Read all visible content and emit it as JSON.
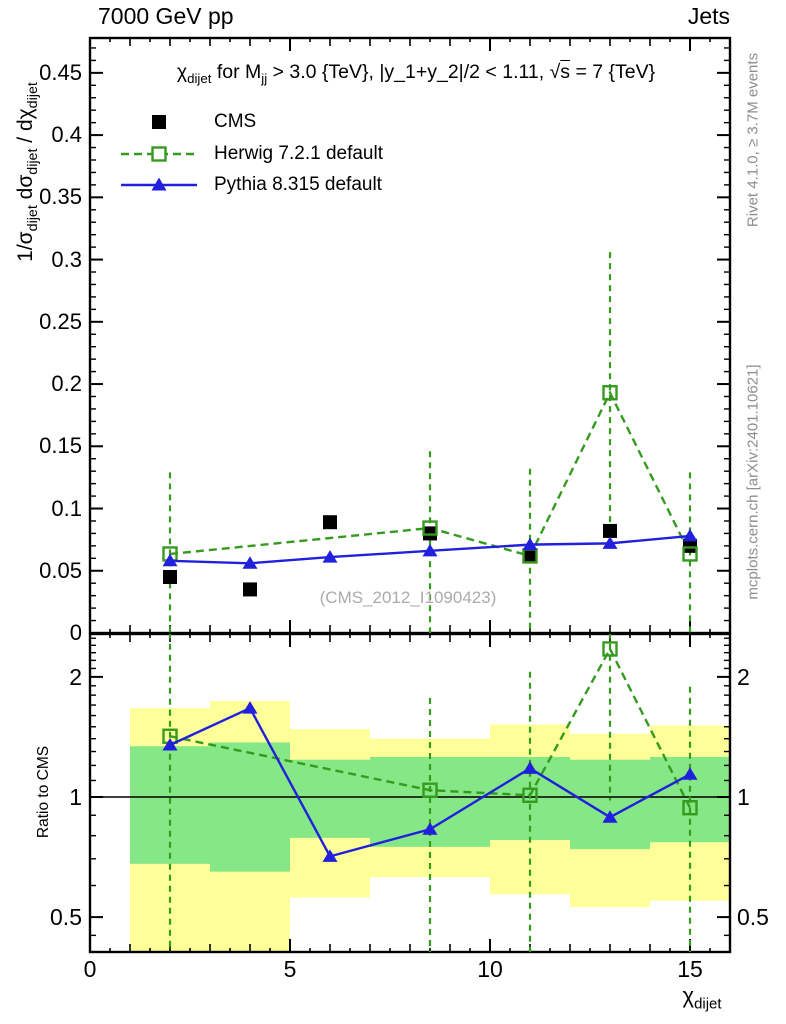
{
  "header": {
    "left": "7000 GeV pp",
    "right": "Jets"
  },
  "title_rich": [
    {
      "t": "χ"
    },
    {
      "t": "dijet",
      "sub": true
    },
    {
      "t": " for M"
    },
    {
      "t": "jj",
      "sub": true
    },
    {
      "t": " > 3.0 {TeV}, |y_1+y_2|/2 < 1.11, "
    },
    {
      "t": "√"
    },
    {
      "t": "s",
      "ov": true
    },
    {
      "t": " = 7 {TeV}"
    }
  ],
  "watermark": "(CMS_2012_I1090423)",
  "notes": {
    "right_top": "Rivet 4.1.0, ≥ 3.7M events",
    "right_bottom": "mcplots.cern.ch [arXiv:2401.10621]"
  },
  "legend": [
    {
      "label": "CMS",
      "marker": "square-filled",
      "line": "none",
      "color": "#000000"
    },
    {
      "label": "Herwig 7.2.1 default",
      "marker": "square-open",
      "line": "dashed",
      "color": "#359b1e"
    },
    {
      "label": "Pythia 8.315 default",
      "marker": "triangle-filled",
      "line": "solid",
      "color": "#2121dd"
    }
  ],
  "axes": {
    "main_ylabel_rich": [
      {
        "t": "1/σ"
      },
      {
        "t": "dijet",
        "sub": true
      },
      {
        "t": "  dσ"
      },
      {
        "t": "dijet",
        "sub": true
      },
      {
        "t": " / dχ"
      },
      {
        "t": "dijet",
        "sub": true
      }
    ],
    "ratio_ylabel": "Ratio to CMS",
    "xlabel_rich": [
      {
        "t": "χ"
      },
      {
        "t": "dijet",
        "sub": true
      }
    ],
    "main_y": {
      "values": [
        0,
        0.05,
        0.1,
        0.15,
        0.2,
        0.25,
        0.3,
        0.35,
        0.4,
        0.45
      ],
      "labels": [
        "0",
        "0.05",
        "0.1",
        "0.15",
        "0.2",
        "0.25",
        "0.3",
        "0.35",
        "0.4",
        "0.45"
      ]
    },
    "ratio_y": {
      "values": [
        0.5,
        1,
        2
      ],
      "labels": [
        "0.5",
        "1",
        "2"
      ]
    },
    "x": {
      "values": [
        0,
        5,
        10,
        15
      ],
      "labels": [
        "0",
        "5",
        "10",
        "15"
      ]
    }
  },
  "colors": {
    "herwig_green": "#359b1e",
    "pythia_blue": "#2121dd",
    "band_yellow": "#ffff99",
    "band_green": "#86e786",
    "frame": "#000000",
    "note_gray": "#8e8e8e",
    "watermark_gray": "#ababab"
  },
  "chart_data": [
    {
      "type": "line",
      "panel": "main",
      "title": "chi_dijet for M_jj > 3.0 TeV, |y_1+y_2|/2 < 1.11, sqrt(s) = 7 TeV",
      "ylabel": "1/sigma_dijet dsigma_dijet / dchi_dijet",
      "xlim": [
        0,
        16
      ],
      "ylim": [
        0,
        0.478
      ],
      "grid": false,
      "legend_position": "top-left",
      "series": [
        {
          "name": "CMS",
          "marker": "square-filled",
          "line": "none",
          "color": "#000000",
          "x": [
            2,
            4,
            6,
            8.5,
            11,
            13,
            15
          ],
          "y": [
            0.045,
            0.035,
            0.089,
            0.08,
            0.062,
            0.082,
            0.07
          ]
        },
        {
          "name": "Herwig 7.2.1 default",
          "marker": "square-open",
          "line": "dashed",
          "color": "#359b1e",
          "x": [
            2,
            8.5,
            11,
            13,
            15
          ],
          "y": [
            0.0635,
            0.0843,
            0.0619,
            0.193,
            0.0635
          ],
          "err_lo": [
            -0.01,
            -0.01,
            -0.01,
            0.088,
            -0.01
          ],
          "err_hi": [
            0.129,
            0.146,
            0.132,
            0.306,
            0.129
          ]
        },
        {
          "name": "Pythia 8.315 default",
          "marker": "triangle-filled",
          "line": "solid",
          "color": "#2121dd",
          "x": [
            2,
            4,
            6,
            8.5,
            11,
            13,
            15
          ],
          "y": [
            0.058,
            0.056,
            0.061,
            0.066,
            0.071,
            0.072,
            0.078
          ]
        }
      ]
    },
    {
      "type": "ratio",
      "panel": "ratio",
      "ylabel": "Ratio to CMS",
      "xlabel": "chi_dijet",
      "scale": "log",
      "xlim": [
        0,
        16
      ],
      "ylim": [
        0.409,
        2.56
      ],
      "reference_line": 1,
      "y_minor_ticks": [
        0.45,
        0.6,
        0.7,
        0.8,
        0.9,
        1.1,
        1.2,
        1.3,
        1.4,
        1.5,
        1.6,
        1.7,
        1.8,
        1.9,
        2.1,
        2.2,
        2.3,
        2.4,
        2.5
      ],
      "band_edges": [
        1,
        3,
        5,
        7,
        10,
        12,
        14,
        16
      ],
      "yellow_band": [
        [
          0.38,
          1.67
        ],
        [
          0.38,
          1.74
        ],
        [
          0.56,
          1.48
        ],
        [
          0.63,
          1.4
        ],
        [
          0.57,
          1.52
        ],
        [
          0.53,
          1.44
        ],
        [
          0.55,
          1.51
        ]
      ],
      "green_band": [
        [
          0.68,
          1.34
        ],
        [
          0.65,
          1.37
        ],
        [
          0.79,
          1.24
        ],
        [
          0.75,
          1.26
        ],
        [
          0.78,
          1.26
        ],
        [
          0.74,
          1.24
        ],
        [
          0.77,
          1.26
        ]
      ],
      "series": [
        {
          "name": "Herwig 7.2.1 default",
          "marker": "square-open",
          "line": "dashed",
          "color": "#359b1e",
          "x": [
            2,
            8.5,
            11,
            13,
            15
          ],
          "y": [
            1.42,
            1.04,
            1.01,
            2.35,
            0.94
          ],
          "err_lo": [
            0.35,
            0.35,
            0.35,
            0.98,
            0.35
          ],
          "err_hi": [
            2.75,
            1.77,
            2.06,
            2.75,
            1.89
          ]
        },
        {
          "name": "Pythia 8.315 default",
          "marker": "triangle-filled",
          "line": "solid",
          "color": "#2121dd",
          "x": [
            2,
            4,
            6,
            8.5,
            11,
            13,
            15
          ],
          "y": [
            1.35,
            1.67,
            0.71,
            0.83,
            1.18,
            0.89,
            1.14
          ]
        }
      ]
    }
  ]
}
